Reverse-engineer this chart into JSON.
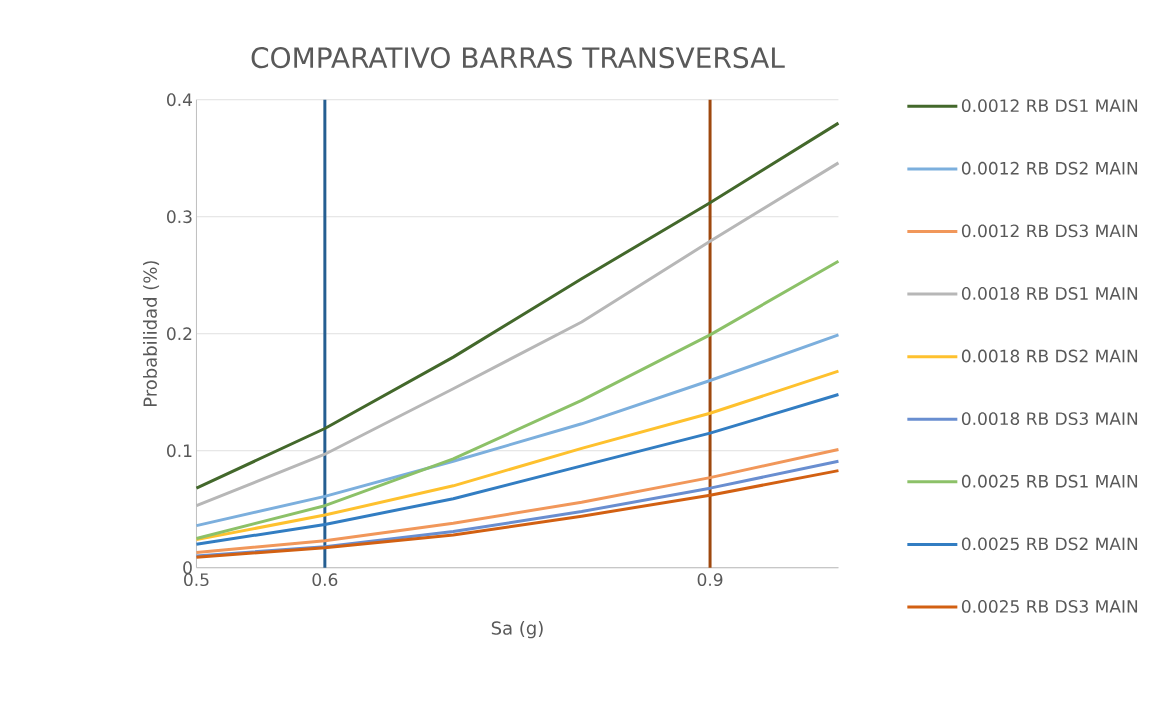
{
  "chart_data": {
    "type": "line",
    "title": "COMPARATIVO BARRAS TRANSVERSAL",
    "xlabel": "Sa (g)",
    "ylabel": "Probabilidad (%)",
    "x": [
      0.5,
      0.6,
      0.7,
      0.8,
      0.9,
      1.0
    ],
    "xlim": [
      0.5,
      1.0
    ],
    "xticks": [
      0.5,
      0.6,
      0.9
    ],
    "ylim": [
      0,
      0.4
    ],
    "yticks": [
      0,
      0.1,
      0.2,
      0.3,
      0.4
    ],
    "grid": "y",
    "legend": "right",
    "marker": "none",
    "line_style": "solid",
    "series": [
      {
        "name": "0.0012 RB DS1 MAIN",
        "color": "#43682b",
        "values": [
          0.068,
          0.119,
          0.18,
          0.247,
          0.312,
          0.38
        ]
      },
      {
        "name": "0.0012 RB DS2 MAIN",
        "color": "#7cafdd",
        "values": [
          0.036,
          0.061,
          0.091,
          0.123,
          0.16,
          0.199
        ]
      },
      {
        "name": "0.0012 RB DS3 MAIN",
        "color": "#f1975a",
        "values": [
          0.013,
          0.023,
          0.038,
          0.056,
          0.077,
          0.101
        ]
      },
      {
        "name": "0.0018 RB DS1 MAIN",
        "color": "#b7b7b7",
        "values": [
          0.053,
          0.097,
          0.153,
          0.21,
          0.279,
          0.346
        ]
      },
      {
        "name": "0.0018 RB DS2 MAIN",
        "color": "#fec12e",
        "values": [
          0.024,
          0.045,
          0.07,
          0.102,
          0.132,
          0.168
        ]
      },
      {
        "name": "0.0018 RB DS3 MAIN",
        "color": "#698ed0",
        "values": [
          0.01,
          0.018,
          0.031,
          0.048,
          0.068,
          0.091
        ]
      },
      {
        "name": "0.0025 RB DS1 MAIN",
        "color": "#8cc168",
        "values": [
          0.025,
          0.053,
          0.093,
          0.143,
          0.199,
          0.262
        ]
      },
      {
        "name": "0.0025 RB DS2 MAIN",
        "color": "#327dc2",
        "values": [
          0.02,
          0.037,
          0.059,
          0.087,
          0.115,
          0.148
        ]
      },
      {
        "name": "0.0025 RB DS3 MAIN",
        "color": "#d26012",
        "values": [
          0.009,
          0.017,
          0.028,
          0.044,
          0.062,
          0.083
        ]
      }
    ],
    "ref_lines": [
      {
        "axis": "x",
        "value": 0.6,
        "color": "#255e91"
      },
      {
        "axis": "x",
        "value": 0.9,
        "color": "#9e480e"
      }
    ]
  }
}
